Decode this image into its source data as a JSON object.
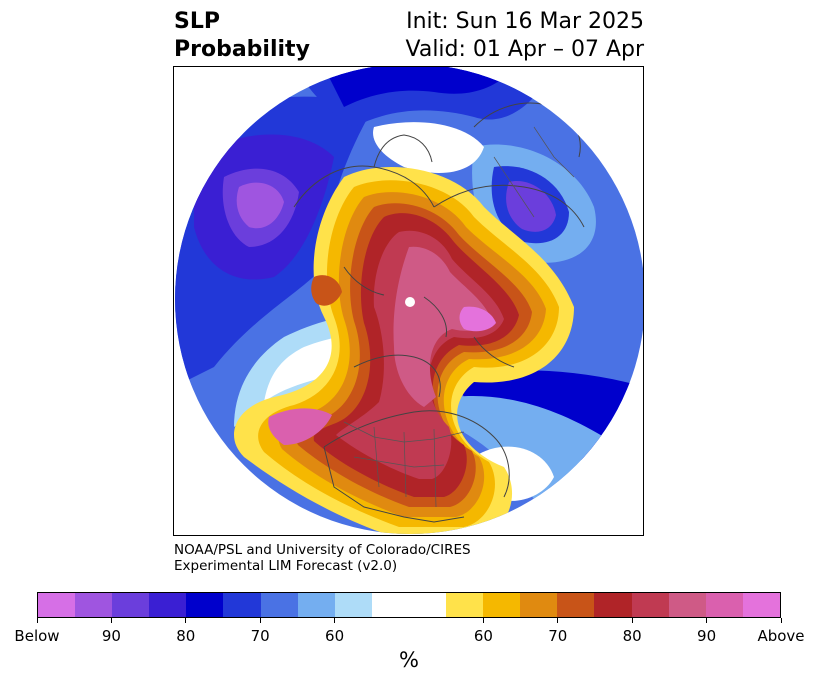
{
  "title": {
    "left_line1": "SLP",
    "left_line2": "Probability",
    "right_line1": "Init: Sun 16 Mar 2025",
    "right_line2": "Valid: 01 Apr – 07 Apr"
  },
  "credit": {
    "line1": "NOAA/PSL and University of Colorado/CIRES",
    "line2": "Experimental LIM Forecast (v2.0)"
  },
  "colorbar": {
    "colors": [
      "#d66fe6",
      "#9f55e0",
      "#6b3edc",
      "#3a1fd3",
      "#0000cc",
      "#2238d8",
      "#4a72e4",
      "#74aef0",
      "#aedcf8",
      "#ffffff",
      "#ffffff",
      "#ffe24a",
      "#f5b800",
      "#e08a10",
      "#c85418",
      "#b02428",
      "#c03a52",
      "#cf5a86",
      "#da60ae",
      "#e472dc"
    ],
    "labels": [
      "Below",
      "90",
      "80",
      "70",
      "60",
      "60",
      "70",
      "80",
      "90",
      "Above"
    ],
    "units": "%"
  },
  "map": {
    "projection": "north polar stereographic",
    "legend_colors": {
      "deep_purple": "#6b3edc",
      "blue": "#0000cc",
      "light_blue": "#aedcf8",
      "yellow": "#ffe24a",
      "orange": "#e08a10",
      "red": "#b02428",
      "pink": "#da60ae"
    }
  }
}
